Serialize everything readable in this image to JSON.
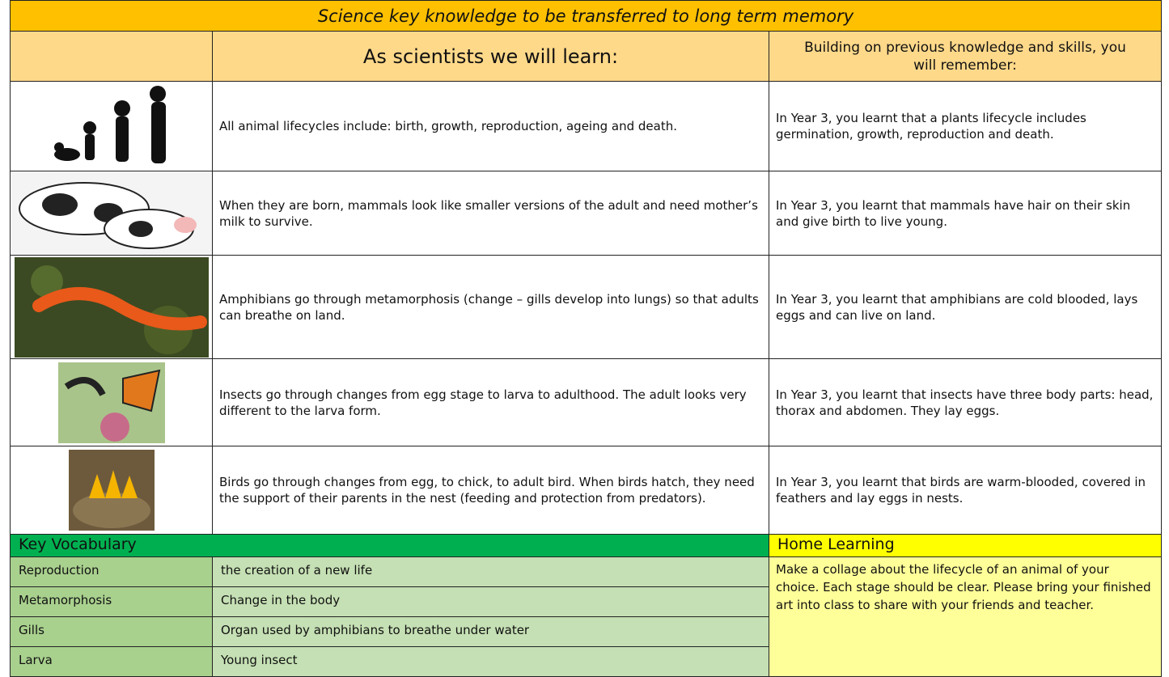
{
  "title": "Science key knowledge to be transferred to long term memory",
  "header": {
    "learn": "As scientists we will learn:",
    "previous": "Building on previous knowledge and skills, you will remember:"
  },
  "rows": [
    {
      "learn": "All animal lifecycles include: birth, growth, reproduction, ageing and death.",
      "previous": "In Year 3, you learnt that a plants lifecycle includes germination, growth, reproduction and death."
    },
    {
      "learn": "When they are born, mammals look like smaller versions of the adult and need mother’s milk to survive.",
      "previous": "In Year 3, you learnt that mammals have hair on their skin and give birth to live young."
    },
    {
      "learn": "Amphibians go through metamorphosis (change – gills develop into lungs) so that adults can breathe on land.",
      "previous": "In Year 3, you learnt that amphibians are cold blooded, lays eggs and can live on land."
    },
    {
      "learn": "Insects go through changes from egg stage to larva to adulthood. The adult looks very different to the larva form.",
      "previous": "In Year 3, you learnt that insects have three body parts: head, thorax and abdomen. They lay eggs."
    },
    {
      "learn": "Birds go through changes from egg, to chick, to adult bird. When birds hatch, they need the support of their parents in the nest (feeding and protection from predators).",
      "previous": "In Year 3, you learnt that birds are warm-blooded, covered in feathers and lay eggs in nests."
    }
  ],
  "vocabulary": {
    "title": "Key Vocabulary",
    "rows": [
      [
        "Reproduction",
        "the creation of a new life"
      ],
      [
        "Metamorphosis",
        "Change in the body"
      ],
      [
        "Gills",
        "Organ used by amphibians to breathe under water"
      ],
      [
        "Larva",
        "Young insect"
      ]
    ]
  },
  "home_learning": {
    "title": "Home Learning",
    "text": "Make a collage about the lifecycle of an animal of your choice. Each stage should be clear. Please bring your finished art into class to share with your friends and teacher."
  }
}
